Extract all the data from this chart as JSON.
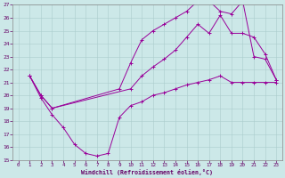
{
  "xlabel": "Windchill (Refroidissement éolien,°C)",
  "xlim": [
    -0.5,
    23.5
  ],
  "ylim": [
    15,
    27
  ],
  "yticks": [
    15,
    16,
    17,
    18,
    19,
    20,
    21,
    22,
    23,
    24,
    25,
    26,
    27
  ],
  "xticks": [
    0,
    1,
    2,
    3,
    4,
    5,
    6,
    7,
    8,
    9,
    10,
    11,
    12,
    13,
    14,
    15,
    16,
    17,
    18,
    19,
    20,
    21,
    22,
    23
  ],
  "line_color": "#990099",
  "bg_color": "#cce8e8",
  "grid_color": "#aacccc",
  "line1_x": [
    1,
    2,
    3,
    4,
    5,
    6,
    7,
    8,
    9,
    10,
    11,
    12,
    13,
    14,
    15,
    16,
    17,
    18,
    19,
    20,
    21,
    22,
    23
  ],
  "line1_y": [
    21.5,
    19.8,
    18.5,
    17.5,
    16.2,
    15.5,
    15.3,
    15.5,
    18.3,
    19.2,
    19.5,
    20.0,
    20.2,
    20.5,
    20.8,
    21.0,
    21.2,
    21.5,
    21.0,
    21.0,
    21.0,
    21.0,
    21.0
  ],
  "line2_x": [
    1,
    2,
    3,
    9,
    10,
    11,
    12,
    13,
    14,
    15,
    16,
    17,
    18,
    19,
    20,
    21,
    22,
    23
  ],
  "line2_y": [
    21.5,
    20.0,
    19.0,
    20.5,
    22.5,
    24.3,
    25.0,
    25.5,
    26.0,
    26.5,
    27.3,
    27.3,
    26.5,
    26.3,
    27.3,
    23.0,
    22.8,
    21.2
  ],
  "line3_x": [
    1,
    2,
    3,
    10,
    11,
    12,
    13,
    14,
    15,
    16,
    17,
    18,
    19,
    20,
    21,
    22,
    23
  ],
  "line3_y": [
    21.5,
    20.0,
    19.0,
    20.5,
    21.5,
    22.2,
    22.8,
    23.5,
    24.5,
    25.5,
    24.8,
    26.2,
    24.8,
    24.8,
    24.5,
    23.2,
    21.2
  ]
}
